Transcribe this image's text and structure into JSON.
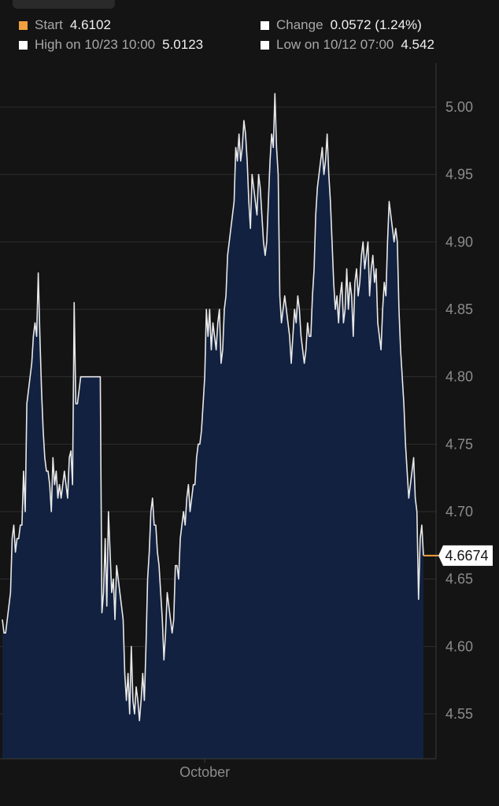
{
  "legend": {
    "start": {
      "label": "Start",
      "value": "4.6102",
      "color": "#f0a040"
    },
    "change": {
      "label": "Change",
      "value": "0.0572 (1.24%)",
      "color": "#ffffff"
    },
    "high": {
      "label": "High on 10/23 10:00",
      "value": "5.0123",
      "color": "#ffffff"
    },
    "low": {
      "label": "Low on 10/12 07:00",
      "value": "4.542",
      "color": "#ffffff"
    }
  },
  "chart_data": {
    "type": "area",
    "title": "",
    "xlabel": "",
    "ylabel": "",
    "ylim": [
      4.52,
      5.08
    ],
    "yticks": [
      4.55,
      4.6,
      4.65,
      4.7,
      4.75,
      4.8,
      4.85,
      4.9,
      4.95,
      5.0
    ],
    "ytick_labels": [
      "4.55",
      "4.60",
      "4.65",
      "4.70",
      "4.75",
      "4.80",
      "4.85",
      "4.90",
      "4.95",
      "5.00"
    ],
    "x_tick_labels": [
      {
        "label": "October",
        "index": 124
      }
    ],
    "grid": true,
    "last_value": 4.6674,
    "last_value_label": "4.6674",
    "colors": {
      "fill": "#12213f",
      "line": "#e8e8e8",
      "last_marker": "#f0a040",
      "grid": "#2e2e2e"
    },
    "series": [
      {
        "values": [
          4.62,
          4.61,
          4.61,
          4.62,
          4.63,
          4.64,
          4.68,
          4.69,
          4.67,
          4.68,
          4.68,
          4.69,
          4.69,
          4.73,
          4.7,
          4.78,
          4.79,
          4.8,
          4.81,
          4.83,
          4.84,
          4.83,
          4.877,
          4.83,
          4.79,
          4.76,
          4.74,
          4.73,
          4.73,
          4.72,
          4.7,
          4.74,
          4.72,
          4.73,
          4.71,
          4.72,
          4.71,
          4.72,
          4.73,
          4.72,
          4.71,
          4.74,
          4.745,
          4.72,
          4.855,
          4.78,
          4.78,
          4.79,
          4.8,
          4.8,
          4.8,
          4.8,
          4.8,
          4.8,
          4.8,
          4.8,
          4.8,
          4.8,
          4.8,
          4.8,
          4.8,
          4.625,
          4.64,
          4.68,
          4.63,
          4.7,
          4.67,
          4.64,
          4.65,
          4.62,
          4.66,
          4.65,
          4.64,
          4.63,
          4.62,
          4.58,
          4.56,
          4.58,
          4.55,
          4.6,
          4.56,
          4.55,
          4.57,
          4.56,
          4.545,
          4.56,
          4.58,
          4.56,
          4.6,
          4.65,
          4.67,
          4.7,
          4.71,
          4.69,
          4.69,
          4.67,
          4.66,
          4.64,
          4.62,
          4.59,
          4.61,
          4.64,
          4.63,
          4.62,
          4.61,
          4.62,
          4.66,
          4.66,
          4.65,
          4.68,
          4.69,
          4.7,
          4.69,
          4.71,
          4.72,
          4.7,
          4.71,
          4.72,
          4.72,
          4.74,
          4.75,
          4.75,
          4.76,
          4.78,
          4.8,
          4.85,
          4.83,
          4.85,
          4.82,
          4.84,
          4.83,
          4.82,
          4.84,
          4.85,
          4.81,
          4.82,
          4.85,
          4.86,
          4.89,
          4.9,
          4.91,
          4.92,
          4.93,
          4.97,
          4.96,
          4.98,
          4.96,
          4.97,
          4.99,
          4.98,
          4.96,
          4.93,
          4.91,
          4.95,
          4.94,
          4.93,
          4.92,
          4.95,
          4.94,
          4.92,
          4.9,
          4.89,
          4.9,
          4.93,
          4.96,
          4.98,
          4.97,
          5.01,
          4.97,
          4.95,
          4.86,
          4.84,
          4.85,
          4.86,
          4.85,
          4.84,
          4.83,
          4.81,
          4.83,
          4.85,
          4.84,
          4.86,
          4.85,
          4.83,
          4.82,
          4.81,
          4.82,
          4.84,
          4.83,
          4.83,
          4.86,
          4.88,
          4.92,
          4.94,
          4.95,
          4.96,
          4.97,
          4.95,
          4.96,
          4.98,
          4.95,
          4.93,
          4.9,
          4.87,
          4.85,
          4.86,
          4.84,
          4.86,
          4.87,
          4.84,
          4.85,
          4.88,
          4.85,
          4.87,
          4.86,
          4.83,
          4.87,
          4.88,
          4.86,
          4.87,
          4.89,
          4.9,
          4.88,
          4.89,
          4.9,
          4.86,
          4.88,
          4.89,
          4.87,
          4.88,
          4.84,
          4.83,
          4.82,
          4.85,
          4.87,
          4.86,
          4.9,
          4.93,
          4.92,
          4.91,
          4.9,
          4.91,
          4.9,
          4.85,
          4.82,
          4.8,
          4.78,
          4.75,
          4.73,
          4.71,
          4.72,
          4.73,
          4.74,
          4.71,
          4.7,
          4.635,
          4.68,
          4.69,
          4.6674
        ]
      }
    ]
  }
}
